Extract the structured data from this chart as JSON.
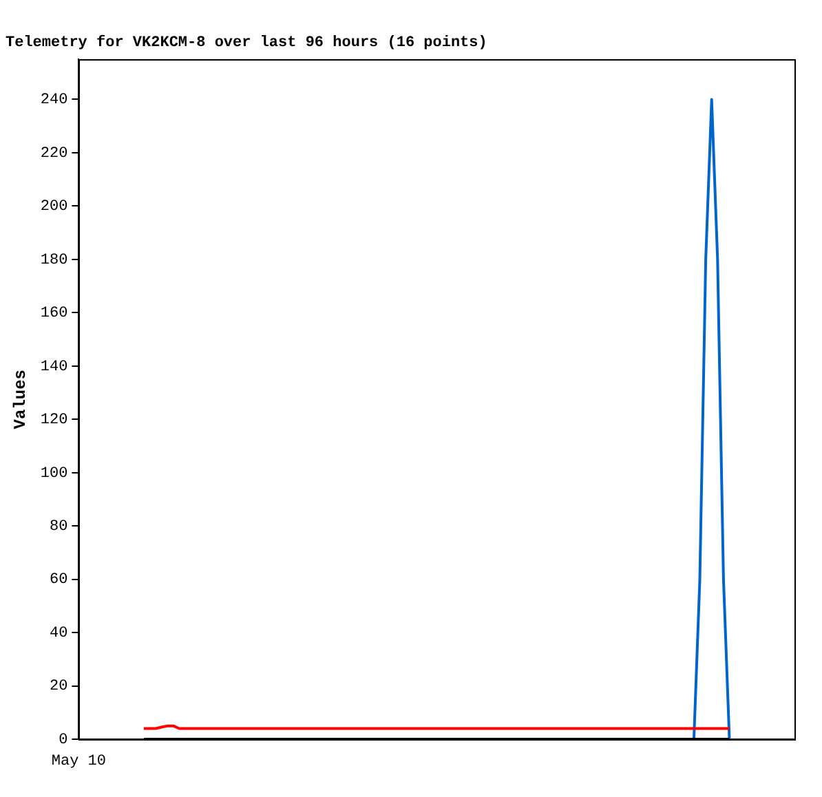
{
  "chart_data": {
    "type": "line",
    "title": "Telemetry for VK2KCM-8 over last 96 hours (16 points)",
    "ylabel": "Values",
    "annotations": [
      "May 10"
    ],
    "categories": [
      null,
      null,
      null,
      null,
      null,
      null,
      null,
      null,
      null,
      null,
      null,
      null,
      null,
      null,
      null,
      null,
      null,
      null,
      null,
      null,
      null,
      null,
      null,
      null,
      null,
      null,
      null,
      null,
      null,
      null,
      null,
      null,
      null,
      null,
      null,
      null,
      null,
      null,
      null,
      null,
      null,
      null,
      null,
      null,
      null,
      null,
      null,
      null,
      null,
      null,
      null,
      null,
      null,
      null,
      null,
      null,
      null,
      null,
      null,
      null,
      null,
      null,
      null,
      null,
      null,
      null,
      null,
      null,
      null,
      null,
      null,
      null,
      null,
      null,
      null,
      null,
      null,
      null,
      null,
      null,
      null,
      null,
      null,
      null,
      null,
      null,
      null,
      null,
      null,
      null,
      null,
      null,
      null,
      null,
      null,
      null,
      null,
      null,
      null,
      null
    ],
    "ylim": [
      0,
      255
    ],
    "yticks": [
      0,
      20,
      40,
      60,
      80,
      100,
      120,
      140,
      160,
      180,
      200,
      220,
      240
    ],
    "tick_labels": "y",
    "grid": false,
    "legend": false,
    "marker": "none",
    "line_style": "solid",
    "series": [
      {
        "color": "#000000",
        "values": [
          0,
          0,
          0,
          0,
          0,
          0,
          0,
          0,
          0,
          0,
          0,
          0,
          0,
          0,
          0,
          0,
          0,
          0,
          0,
          0,
          0,
          0,
          0,
          0,
          0,
          0,
          0,
          0,
          0,
          0,
          0,
          0,
          0,
          0,
          0,
          0,
          0,
          0,
          0,
          0,
          0,
          0,
          0,
          0,
          0,
          0,
          0,
          0,
          0,
          0,
          0,
          0,
          0,
          0,
          0,
          0,
          0,
          0,
          0,
          0,
          0,
          0,
          0,
          0,
          0,
          0,
          0,
          0,
          0,
          0,
          0,
          0,
          0,
          0,
          0,
          0,
          0,
          0,
          0,
          0,
          0,
          0,
          0,
          0,
          0,
          0,
          0,
          0,
          0,
          0,
          0,
          0,
          0,
          0,
          0,
          0,
          0,
          0,
          0,
          0
        ]
      },
      {
        "color": "#ff0000",
        "values": [
          4,
          4,
          4,
          4.5,
          5,
          5,
          4,
          4,
          4,
          4,
          4,
          4,
          4,
          4,
          4,
          4,
          4,
          4,
          4,
          4,
          4,
          4,
          4,
          4,
          4,
          4,
          4,
          4,
          4,
          4,
          4,
          4,
          4,
          4,
          4,
          4,
          4,
          4,
          4,
          4,
          4,
          4,
          4,
          4,
          4,
          4,
          4,
          4,
          4,
          4,
          4,
          4,
          4,
          4,
          4,
          4,
          4,
          4,
          4,
          4,
          4,
          4,
          4,
          4,
          4,
          4,
          4,
          4,
          4,
          4,
          4,
          4,
          4,
          4,
          4,
          4,
          4,
          4,
          4,
          4,
          4,
          4,
          4,
          4,
          4,
          4,
          4,
          4,
          4,
          4,
          4,
          4,
          4,
          4,
          4,
          4,
          4,
          4,
          4,
          4
        ]
      },
      {
        "color": "#0066cc",
        "values": [
          null,
          null,
          null,
          null,
          null,
          null,
          null,
          null,
          null,
          null,
          null,
          null,
          null,
          null,
          null,
          null,
          null,
          null,
          null,
          null,
          null,
          null,
          null,
          null,
          null,
          null,
          null,
          null,
          null,
          null,
          null,
          null,
          null,
          null,
          null,
          null,
          null,
          null,
          null,
          null,
          null,
          null,
          null,
          null,
          null,
          null,
          null,
          null,
          null,
          null,
          null,
          null,
          null,
          null,
          null,
          null,
          null,
          null,
          null,
          null,
          null,
          null,
          null,
          null,
          null,
          null,
          null,
          null,
          null,
          null,
          null,
          null,
          null,
          null,
          null,
          null,
          null,
          null,
          null,
          null,
          null,
          null,
          null,
          null,
          null,
          null,
          null,
          null,
          null,
          null,
          null,
          null,
          null,
          0,
          60,
          180,
          240,
          180,
          60,
          0
        ]
      }
    ]
  }
}
